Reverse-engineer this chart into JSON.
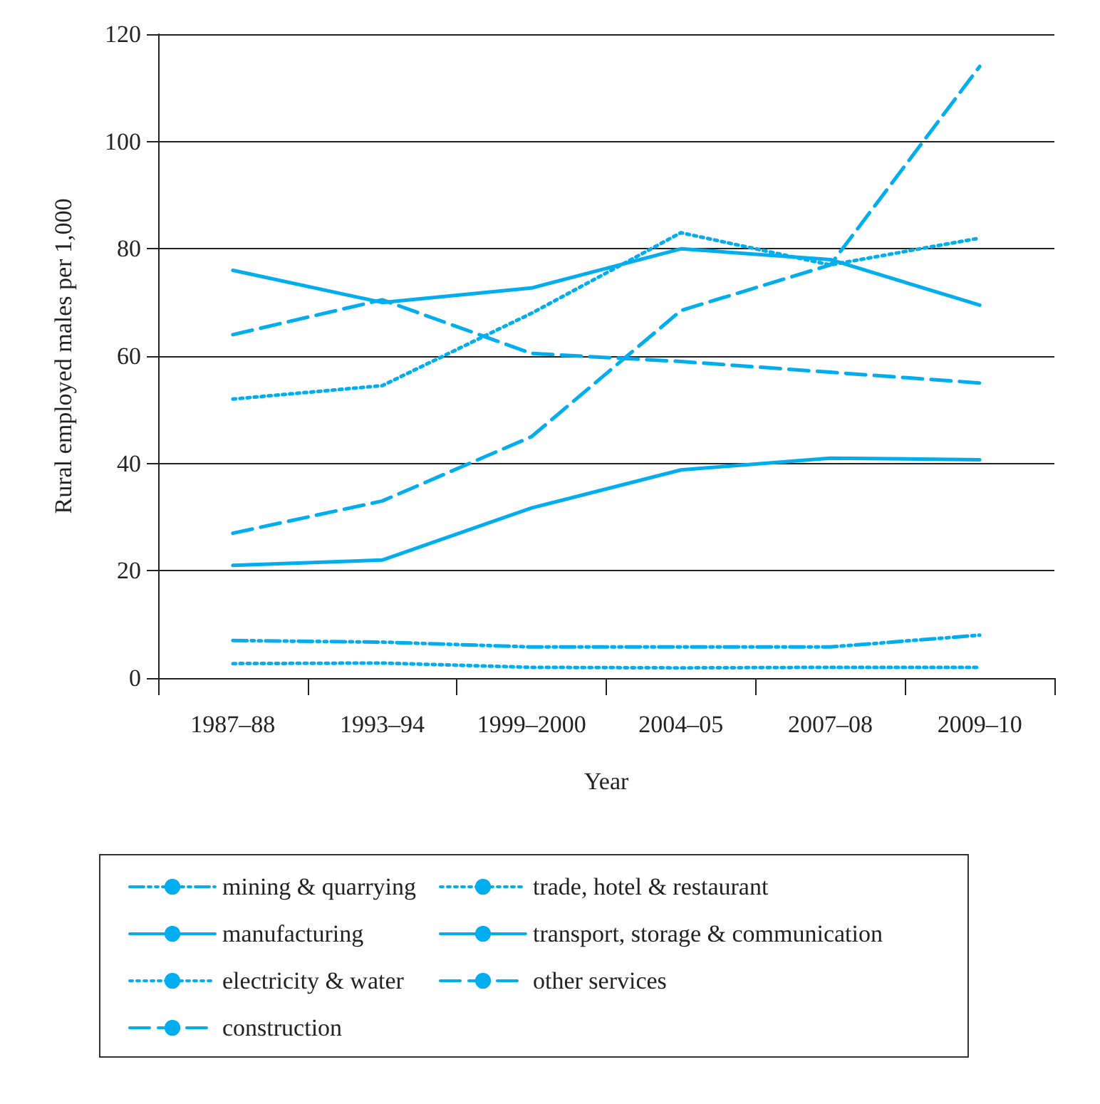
{
  "chart_data": {
    "type": "line",
    "xlabel": "Year",
    "ylabel": "Rural employed males per 1,000",
    "categories": [
      "1987–88",
      "1993–94",
      "1999–2000",
      "2004–05",
      "2007–08",
      "2009–10"
    ],
    "ylim": [
      0,
      120
    ],
    "yticks": [
      0,
      20,
      40,
      60,
      80,
      100,
      120
    ],
    "grid": "y",
    "legend": "bottom",
    "marker": "none",
    "series": [
      {
        "name": "mining & quarrying",
        "color": "#00aeef",
        "line_style": "dashdot",
        "values": [
          7,
          6.7,
          5.8,
          5.8,
          5.8,
          8
        ]
      },
      {
        "name": "manufacturing",
        "color": "#00aeef",
        "line_style": "solid",
        "values": [
          76,
          70,
          72.7,
          80,
          78,
          69.5
        ]
      },
      {
        "name": "electricity & water",
        "color": "#00aeef",
        "line_style": "dotted",
        "values": [
          2.7,
          2.8,
          2,
          1.9,
          2,
          2
        ]
      },
      {
        "name": "construction",
        "color": "#00aeef",
        "line_style": "dashed",
        "values": [
          27,
          33,
          45,
          68.5,
          77,
          114
        ]
      },
      {
        "name": "trade, hotel & restaurant",
        "color": "#00aeef",
        "line_style": "dotted",
        "values": [
          52,
          54.5,
          68,
          83,
          77,
          82
        ]
      },
      {
        "name": "transport, storage & communication",
        "color": "#00aeef",
        "line_style": "solid",
        "values": [
          21,
          22,
          31.7,
          38.8,
          41,
          40.7
        ]
      },
      {
        "name": "other services",
        "color": "#00aeef",
        "line_style": "dashed",
        "values": [
          64,
          70.5,
          60.5,
          59,
          57,
          55
        ]
      }
    ]
  }
}
